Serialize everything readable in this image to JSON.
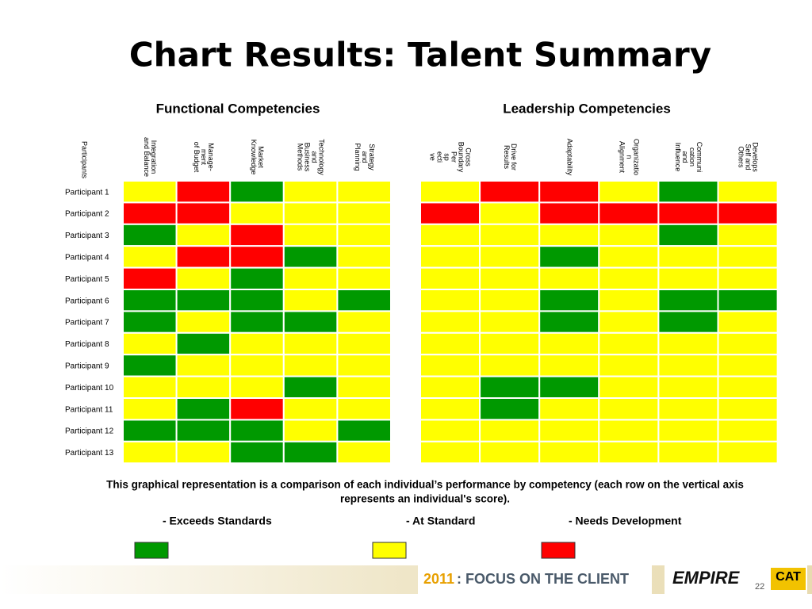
{
  "title": "Chart Results: Talent Summary",
  "row_header": "Participants",
  "participants": [
    "Participant 1",
    "Participant 2",
    "Participant 3",
    "Participant 4",
    "Participant 5",
    "Participant 6",
    "Participant 7",
    "Participant 8",
    "Participant 9",
    "Participant 10",
    "Participant 11",
    "Participant 12",
    "Participant 13"
  ],
  "legend": [
    {
      "label": "- Exceeds Standards",
      "color": "#009900"
    },
    {
      "label": "- At Standard",
      "color": "#ffff00"
    },
    {
      "label": "- Needs Development",
      "color": "#ff0000"
    }
  ],
  "groups": [
    {
      "title": "Functional Competencies",
      "columns": [
        [
          "Integration",
          "and Balance"
        ],
        [
          "Manage-",
          "ment",
          "of Budget"
        ],
        [
          "Market",
          "Knowledge"
        ],
        [
          "Technology",
          "and",
          "Business",
          "Methods"
        ],
        [
          "Strategy",
          "and",
          "Planning"
        ]
      ],
      "ratings": [
        [
          1,
          2,
          0,
          1,
          1
        ],
        [
          2,
          2,
          1,
          1,
          1
        ],
        [
          0,
          1,
          2,
          1,
          1
        ],
        [
          1,
          2,
          2,
          0,
          1
        ],
        [
          2,
          1,
          0,
          1,
          1
        ],
        [
          0,
          0,
          0,
          1,
          0
        ],
        [
          0,
          1,
          0,
          0,
          1
        ],
        [
          1,
          0,
          1,
          1,
          1
        ],
        [
          0,
          1,
          1,
          1,
          1
        ],
        [
          1,
          1,
          1,
          0,
          1
        ],
        [
          1,
          0,
          2,
          1,
          1
        ],
        [
          0,
          0,
          0,
          1,
          0
        ],
        [
          1,
          1,
          0,
          0,
          1
        ]
      ]
    },
    {
      "title": "Leadership Competencies",
      "columns": [
        [
          "Cross",
          "Boundary",
          "Per",
          "sp",
          "ecti",
          "ve"
        ],
        [
          "Drive for",
          "Results"
        ],
        [
          "Adaptability"
        ],
        [
          "Organizatio",
          "n",
          "Alignment"
        ],
        [
          "Communi",
          "cation",
          "and",
          "Influence"
        ],
        [
          "Develops",
          "Self and",
          "Others"
        ]
      ],
      "ratings": [
        [
          1,
          2,
          2,
          1,
          0,
          1
        ],
        [
          2,
          1,
          2,
          2,
          2,
          2
        ],
        [
          1,
          1,
          1,
          1,
          0,
          1
        ],
        [
          1,
          1,
          0,
          1,
          1,
          1
        ],
        [
          1,
          1,
          1,
          1,
          1,
          1
        ],
        [
          1,
          1,
          0,
          1,
          0,
          0
        ],
        [
          1,
          1,
          0,
          1,
          0,
          1
        ],
        [
          1,
          1,
          1,
          1,
          1,
          1
        ],
        [
          1,
          1,
          1,
          1,
          1,
          1
        ],
        [
          1,
          0,
          0,
          1,
          1,
          1
        ],
        [
          1,
          0,
          1,
          1,
          1,
          1
        ],
        [
          1,
          1,
          1,
          1,
          1,
          1
        ],
        [
          1,
          1,
          1,
          1,
          1,
          1
        ]
      ]
    }
  ],
  "note": [
    "This graphical representation is a comparison of each individual’s performance by competency (each row on the vertical axis",
    "represents an individual's score)."
  ],
  "footer": {
    "year": "2011",
    "slogan": " : FOCUS ON THE CLIENT",
    "logo": "EMPIRE",
    "brand": "CAT",
    "page": "22"
  }
}
